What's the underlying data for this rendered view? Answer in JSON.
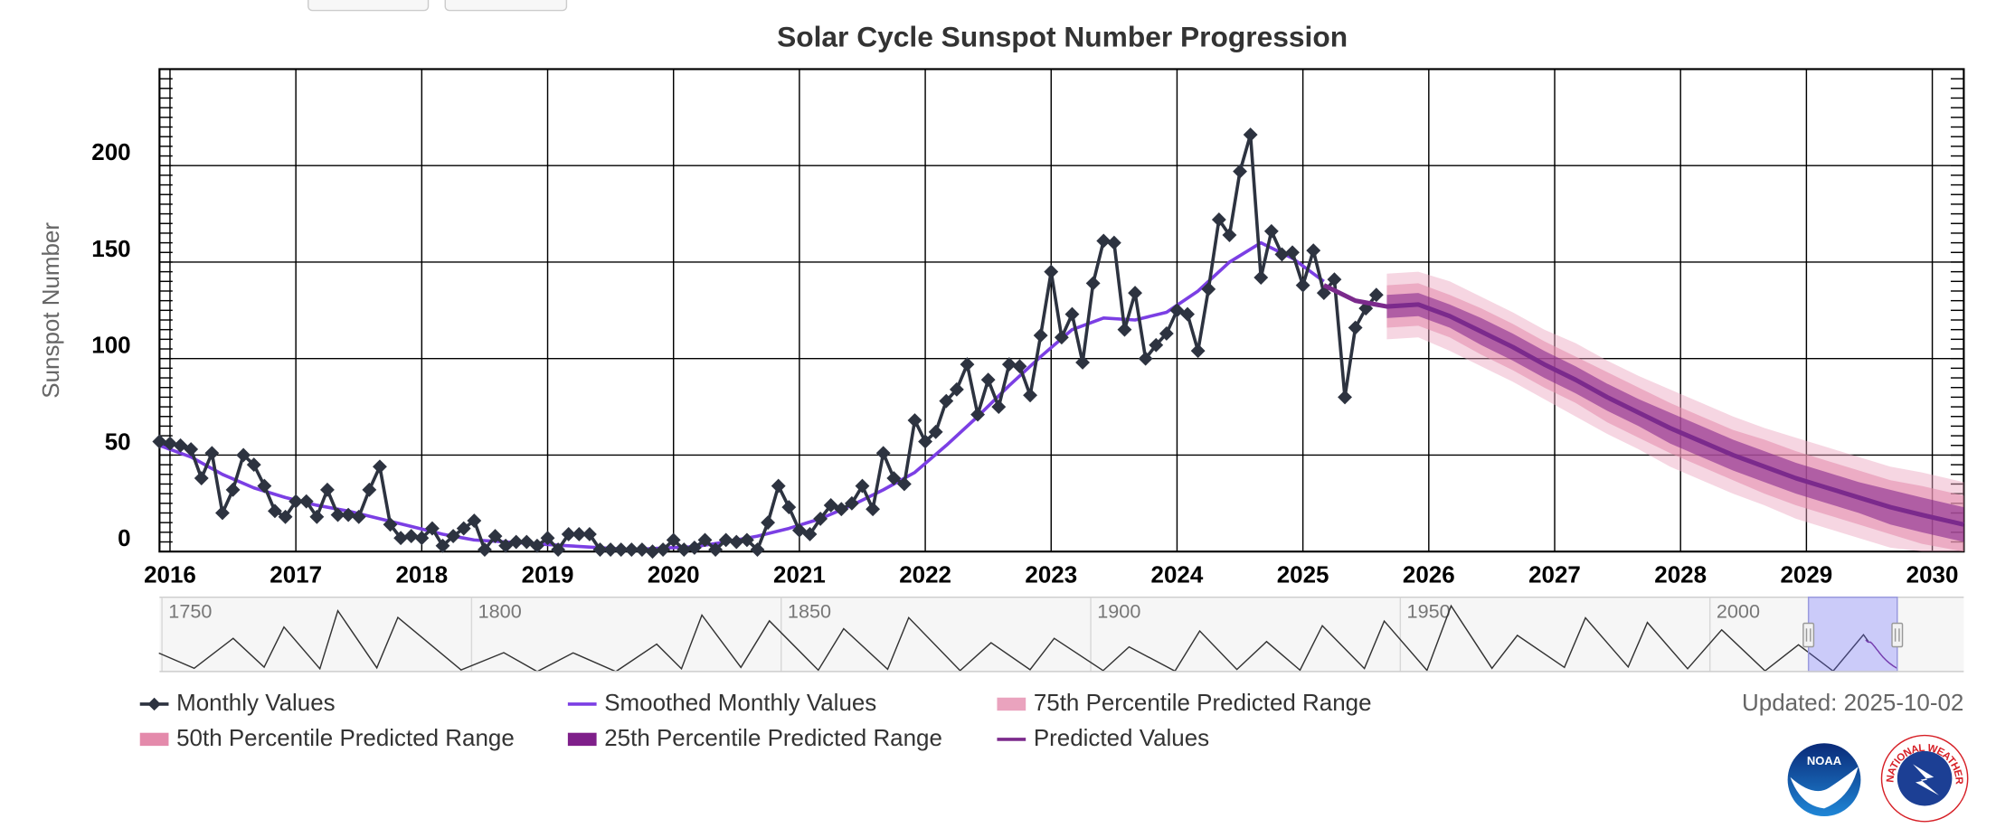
{
  "chart_data": {
    "type": "line",
    "title": "Solar Cycle Sunspot Number Progression",
    "ylabel": "Sunspot Number",
    "ylim": [
      0,
      250
    ],
    "yticks": [
      0,
      50,
      100,
      150,
      200
    ],
    "yminorticks": [
      0,
      5,
      10,
      15,
      20,
      25,
      30,
      35,
      40,
      45,
      50,
      55,
      60,
      65,
      70,
      75,
      80,
      85,
      90,
      95,
      100,
      105,
      110,
      115,
      120,
      125,
      130,
      135,
      140,
      145,
      150,
      155,
      160,
      165,
      170,
      175,
      180,
      185,
      190,
      195,
      200,
      205,
      210,
      215,
      220,
      225,
      230,
      235,
      240,
      245,
      250
    ],
    "xlim": [
      "2015-12",
      "2030-04"
    ],
    "xticks": [
      2016,
      2017,
      2018,
      2019,
      2020,
      2021,
      2022,
      2023,
      2024,
      2025,
      2026,
      2027,
      2028,
      2029,
      2030
    ],
    "grid": true,
    "series": [
      {
        "name": "Monthly Values",
        "color": "#2d3340",
        "marker": "diamond",
        "x": [
          "2015-12",
          "2016-01",
          "2016-02",
          "2016-03",
          "2016-04",
          "2016-05",
          "2016-06",
          "2016-07",
          "2016-08",
          "2016-09",
          "2016-10",
          "2016-11",
          "2016-12",
          "2017-01",
          "2017-02",
          "2017-03",
          "2017-04",
          "2017-05",
          "2017-06",
          "2017-07",
          "2017-08",
          "2017-09",
          "2017-10",
          "2017-11",
          "2017-12",
          "2018-01",
          "2018-02",
          "2018-03",
          "2018-04",
          "2018-05",
          "2018-06",
          "2018-07",
          "2018-08",
          "2018-09",
          "2018-10",
          "2018-11",
          "2018-12",
          "2019-01",
          "2019-02",
          "2019-03",
          "2019-04",
          "2019-05",
          "2019-06",
          "2019-07",
          "2019-08",
          "2019-09",
          "2019-10",
          "2019-11",
          "2019-12",
          "2020-01",
          "2020-02",
          "2020-03",
          "2020-04",
          "2020-05",
          "2020-06",
          "2020-07",
          "2020-08",
          "2020-09",
          "2020-10",
          "2020-11",
          "2020-12",
          "2021-01",
          "2021-02",
          "2021-03",
          "2021-04",
          "2021-05",
          "2021-06",
          "2021-07",
          "2021-08",
          "2021-09",
          "2021-10",
          "2021-11",
          "2021-12",
          "2022-01",
          "2022-02",
          "2022-03",
          "2022-04",
          "2022-05",
          "2022-06",
          "2022-07",
          "2022-08",
          "2022-09",
          "2022-10",
          "2022-11",
          "2022-12",
          "2023-01",
          "2023-02",
          "2023-03",
          "2023-04",
          "2023-05",
          "2023-06",
          "2023-07",
          "2023-08",
          "2023-09",
          "2023-10",
          "2023-11",
          "2023-12",
          "2024-01",
          "2024-02",
          "2024-03",
          "2024-04",
          "2024-05",
          "2024-06",
          "2024-07",
          "2024-08",
          "2024-09",
          "2024-10",
          "2024-11",
          "2024-12",
          "2025-01",
          "2025-02",
          "2025-03",
          "2025-04",
          "2025-05",
          "2025-06",
          "2025-07",
          "2025-08"
        ],
        "values": [
          57,
          56,
          55,
          53,
          38,
          51,
          20,
          32,
          50,
          45,
          34,
          21,
          18,
          26,
          26,
          18,
          32,
          19,
          19,
          18,
          32,
          44,
          14,
          7,
          8,
          7,
          12,
          3,
          8,
          12,
          16,
          1,
          8,
          3,
          5,
          5,
          3,
          7,
          1,
          9,
          9,
          9,
          1,
          1,
          1,
          1,
          1,
          0,
          1,
          6,
          1,
          2,
          6,
          1,
          6,
          5,
          6,
          1,
          15,
          34,
          23,
          11,
          9,
          17,
          24,
          22,
          25,
          34,
          22,
          51,
          38,
          35,
          68,
          57,
          62,
          78,
          84,
          97,
          71,
          89,
          75,
          97,
          96,
          81,
          112,
          145,
          111,
          123,
          98,
          139,
          161,
          160,
          115,
          134,
          100,
          107,
          113,
          125,
          123,
          104,
          136,
          172,
          164,
          197,
          216,
          142,
          166,
          154,
          155,
          138,
          156,
          134,
          141,
          80,
          116,
          126,
          133
        ]
      },
      {
        "name": "Smoothed Monthly Values",
        "color": "#7b3fe4",
        "x": [
          "2015-12",
          "2016-03",
          "2016-06",
          "2016-09",
          "2016-12",
          "2017-03",
          "2017-06",
          "2017-09",
          "2017-12",
          "2018-03",
          "2018-06",
          "2018-09",
          "2018-12",
          "2019-03",
          "2019-06",
          "2019-09",
          "2019-12",
          "2020-03",
          "2020-06",
          "2020-09",
          "2020-12",
          "2021-03",
          "2021-06",
          "2021-09",
          "2021-12",
          "2022-03",
          "2022-06",
          "2022-09",
          "2022-12",
          "2023-03",
          "2023-06",
          "2023-09",
          "2023-12",
          "2024-03",
          "2024-06",
          "2024-09",
          "2024-12",
          "2025-03"
        ],
        "values": [
          55,
          49,
          40,
          33,
          28,
          24,
          21,
          17,
          13,
          9,
          6,
          5,
          4,
          3,
          2,
          1,
          1.8,
          2.5,
          5,
          8,
          12,
          17,
          24,
          32,
          41,
          55,
          70,
          86,
          101,
          115,
          121,
          120,
          124,
          135,
          150,
          160,
          152,
          140
        ]
      },
      {
        "name": "75th Percentile Predicted Range",
        "type": "range",
        "color": "#eaa3be",
        "x": [
          "2025-09",
          "2025-12",
          "2026-03",
          "2026-06",
          "2026-09",
          "2026-12",
          "2027-03",
          "2027-06",
          "2027-09",
          "2027-12",
          "2028-03",
          "2028-06",
          "2028-09",
          "2028-12",
          "2029-03",
          "2029-06",
          "2029-09",
          "2029-12",
          "2030-04"
        ],
        "low": [
          110,
          111,
          104,
          96,
          88,
          79,
          70,
          61,
          53,
          44,
          37,
          30,
          24,
          17,
          12,
          7,
          2,
          0,
          0
        ],
        "high": [
          144,
          145,
          140,
          132,
          124,
          115,
          108,
          99,
          91,
          84,
          77,
          70,
          64,
          59,
          54,
          49,
          44,
          41,
          36
        ]
      },
      {
        "name": "50th Percentile Predicted Range",
        "type": "range",
        "color": "#e48aab",
        "x": [
          "2025-09",
          "2025-12",
          "2026-03",
          "2026-06",
          "2026-09",
          "2026-12",
          "2027-03",
          "2027-06",
          "2027-09",
          "2027-12",
          "2028-03",
          "2028-06",
          "2028-09",
          "2028-12",
          "2029-03",
          "2029-06",
          "2029-09",
          "2029-12",
          "2030-04"
        ],
        "low": [
          116,
          117,
          111,
          102,
          94,
          85,
          77,
          67,
          59,
          51,
          44,
          37,
          30,
          24,
          19,
          14,
          9,
          4,
          0
        ],
        "high": [
          138,
          139,
          133,
          126,
          118,
          109,
          101,
          93,
          85,
          77,
          70,
          63,
          58,
          52,
          47,
          42,
          37,
          34,
          29
        ]
      },
      {
        "name": "25th Percentile Predicted Range",
        "type": "range",
        "color": "#7f1f8a",
        "x": [
          "2025-09",
          "2025-12",
          "2026-03",
          "2026-06",
          "2026-09",
          "2026-12",
          "2027-03",
          "2027-06",
          "2027-09",
          "2027-12",
          "2028-03",
          "2028-06",
          "2028-09",
          "2028-12",
          "2029-03",
          "2029-06",
          "2029-09",
          "2029-12",
          "2030-04"
        ],
        "low": [
          121,
          122,
          116,
          107,
          99,
          90,
          82,
          73,
          65,
          56,
          49,
          42,
          36,
          30,
          25,
          20,
          14,
          10,
          5
        ],
        "high": [
          133,
          134,
          128,
          121,
          113,
          104,
          96,
          87,
          79,
          72,
          65,
          58,
          52,
          46,
          41,
          36,
          32,
          28,
          23
        ]
      },
      {
        "name": "Predicted Values",
        "color": "#7b2a8c",
        "x": [
          "2025-03",
          "2025-06",
          "2025-09",
          "2025-12",
          "2026-03",
          "2026-06",
          "2026-09",
          "2026-12",
          "2027-03",
          "2027-06",
          "2027-09",
          "2027-12",
          "2028-03",
          "2028-06",
          "2028-09",
          "2028-12",
          "2029-03",
          "2029-06",
          "2029-09",
          "2029-12",
          "2030-04"
        ],
        "values": [
          138,
          130,
          127,
          128,
          122,
          114,
          106,
          97,
          89,
          80,
          72,
          64,
          57,
          50,
          44,
          38,
          33,
          28,
          23,
          19,
          14
        ]
      }
    ],
    "updated": "Updated: 2025-10-02",
    "navigator": {
      "xlim": [
        1749.6,
        2041
      ],
      "xticks": [
        1750,
        1800,
        1850,
        1900,
        1950,
        2000
      ],
      "ylim": [
        0,
        300
      ],
      "x": [
        1749.5,
        1755.2,
        1761.5,
        1766.5,
        1769.7,
        1775.5,
        1778.4,
        1784.7,
        1788.1,
        1798.3,
        1805.2,
        1810.6,
        1816.4,
        1823.3,
        1829.9,
        1833.9,
        1837.2,
        1843.5,
        1848.1,
        1856.0,
        1860.1,
        1867.2,
        1870.6,
        1878.9,
        1883.9,
        1890.2,
        1894.1,
        1902.0,
        1906.2,
        1913.6,
        1917.6,
        1923.6,
        1928.4,
        1933.8,
        1937.4,
        1944.2,
        1947.4,
        1954.3,
        1958.2,
        1964.8,
        1968.9,
        1976.5,
        1979.9,
        1986.8,
        1989.9,
        1996.4,
        2001.9,
        2008.9,
        2014.3,
        2019.9,
        2024.8,
        2025.6
      ],
      "values": [
        80,
        14,
        144,
        19,
        193,
        12,
        264,
        16,
        235,
        7,
        82,
        0,
        81,
        0,
        119,
        12,
        245,
        18,
        220,
        6,
        186,
        10,
        234,
        4,
        125,
        8,
        144,
        4,
        107,
        2,
        176,
        9,
        130,
        6,
        199,
        13,
        219,
        5,
        285,
        14,
        157,
        18,
        233,
        20,
        213,
        12,
        181,
        3,
        116,
        2,
        160,
        130
      ]
    }
  },
  "logos": {
    "noaa": "NOAA",
    "nws": "NATIONAL WEATHER SERVICE"
  }
}
